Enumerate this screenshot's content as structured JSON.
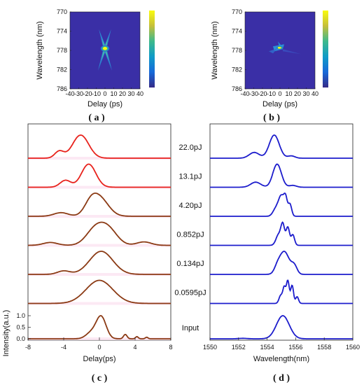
{
  "panel_labels": {
    "a": "( a )",
    "b": "( b )",
    "c": "( c )",
    "d": "( d )"
  },
  "chart_data": [
    {
      "id": "a",
      "type": "heatmap",
      "xlabel": "Delay (ps)",
      "ylabel": "Wavelength (nm)",
      "xlim": [
        -40,
        40
      ],
      "ylim": [
        786,
        770
      ],
      "xticks": [
        -40,
        -30,
        -20,
        -10,
        0,
        10,
        20,
        30,
        40
      ],
      "yticks": [
        770,
        774,
        778,
        782,
        786
      ],
      "colormap": "parula",
      "peak": {
        "x": 0,
        "y": 777.6
      },
      "arms": [
        [
          -7,
          773.6
        ],
        [
          7,
          773.6
        ],
        [
          -8,
          782.2
        ],
        [
          8,
          782.2
        ]
      ],
      "colors": {
        "background": "#3a2fa6"
      }
    },
    {
      "id": "b",
      "type": "heatmap",
      "xlabel": "Delay (ps)",
      "ylabel": "Wavelength (nm)",
      "xlim": [
        -40,
        40
      ],
      "ylim": [
        786,
        770
      ],
      "xticks": [
        -40,
        -30,
        -20,
        -10,
        0,
        10,
        20,
        30,
        40
      ],
      "yticks": [
        770,
        774,
        778,
        782,
        786
      ],
      "colormap": "parula",
      "peak": {
        "x": 0,
        "y": 777.6
      },
      "colors": {
        "background": "#3a2fa6"
      }
    },
    {
      "id": "c",
      "type": "line",
      "xlabel": "Delay(ps)",
      "ylabel": "Intensity(a.u.)",
      "xlim": [
        -8,
        8
      ],
      "xticks": [
        -8,
        -4,
        0,
        4,
        8
      ],
      "ylim": [
        0,
        1.3
      ],
      "yticks": [
        "0.0",
        "0.5",
        "1.0"
      ],
      "series": [
        {
          "name": "22.0pJ",
          "color": "#e8221c",
          "peaks": [
            [
              -2.1,
              1.0,
              0.9
            ],
            [
              -4.5,
              0.3,
              0.5
            ]
          ]
        },
        {
          "name": "13.1pJ",
          "color": "#e8221c",
          "peaks": [
            [
              -1.2,
              1.0,
              0.8
            ],
            [
              -3.8,
              0.3,
              0.6
            ]
          ]
        },
        {
          "name": "4.20pJ",
          "color": "#8b3a14",
          "peaks": [
            [
              0.0,
              1.0,
              1.0
            ],
            [
              -1.0,
              0.5,
              0.7
            ],
            [
              -4.3,
              0.2,
              0.8
            ]
          ]
        },
        {
          "name": "0.852pJ",
          "color": "#8b3a14",
          "peaks": [
            [
              -0.5,
              0.8,
              1.0
            ],
            [
              1.0,
              0.8,
              1.0
            ],
            [
              5.0,
              0.18,
              0.8
            ],
            [
              -5.5,
              0.15,
              0.8
            ]
          ]
        },
        {
          "name": "0.134pJ",
          "color": "#8b3a14",
          "peaks": [
            [
              0.2,
              1.0,
              1.3
            ],
            [
              -4.0,
              0.15,
              0.7
            ]
          ]
        },
        {
          "name": "0.0595pJ",
          "color": "#8b3a14",
          "peaks": [
            [
              0.0,
              1.0,
              1.5
            ]
          ]
        },
        {
          "name": "Input",
          "color": "#8b3a14",
          "peaks": [
            [
              0.2,
              1.0,
              0.55
            ],
            [
              -0.9,
              0.28,
              0.6
            ],
            [
              2.9,
              0.2,
              0.2
            ],
            [
              4.2,
              0.1,
              0.15
            ],
            [
              5.3,
              0.07,
              0.15
            ]
          ]
        }
      ]
    },
    {
      "id": "d",
      "type": "line",
      "xlabel": "Wavelength(nm)",
      "xlim": [
        1550,
        1560
      ],
      "xticks": [
        1550,
        1552,
        1554,
        1556,
        1558,
        1560
      ],
      "series": [
        {
          "name": "22.0pJ",
          "color": "#1c1ccc",
          "peaks": [
            [
              1554.5,
              1.0,
              0.35
            ],
            [
              1553.1,
              0.25,
              0.35
            ],
            [
              1555.7,
              0.1,
              0.25
            ]
          ]
        },
        {
          "name": "13.1pJ",
          "color": "#1c1ccc",
          "peaks": [
            [
              1554.7,
              1.0,
              0.3
            ],
            [
              1553.2,
              0.22,
              0.35
            ],
            [
              1555.8,
              0.08,
              0.25
            ]
          ]
        },
        {
          "name": "4.20pJ",
          "color": "#1c1ccc",
          "peaks": [
            [
              1555.0,
              1.0,
              0.2
            ],
            [
              1555.3,
              0.75,
              0.12
            ],
            [
              1555.6,
              0.6,
              0.12
            ],
            [
              1554.6,
              0.35,
              0.2
            ]
          ]
        },
        {
          "name": "0.852pJ",
          "color": "#1c1ccc",
          "peaks": [
            [
              1555.1,
              0.95,
              0.13
            ],
            [
              1555.45,
              0.85,
              0.12
            ],
            [
              1555.8,
              0.5,
              0.12
            ],
            [
              1554.8,
              0.5,
              0.18
            ]
          ]
        },
        {
          "name": "0.134pJ",
          "color": "#1c1ccc",
          "peaks": [
            [
              1555.2,
              1.0,
              0.35
            ],
            [
              1555.9,
              0.35,
              0.2
            ],
            [
              1554.7,
              0.2,
              0.2
            ]
          ]
        },
        {
          "name": "0.0595pJ",
          "color": "#1c1ccc",
          "peaks": [
            [
              1555.45,
              1.0,
              0.1
            ],
            [
              1555.2,
              0.7,
              0.1
            ],
            [
              1555.75,
              0.8,
              0.1
            ],
            [
              1554.95,
              0.35,
              0.12
            ],
            [
              1556.1,
              0.3,
              0.1
            ]
          ]
        },
        {
          "name": "Input",
          "color": "#1c1ccc",
          "peaks": [
            [
              1555.1,
              1.0,
              0.45
            ],
            [
              1552.3,
              0.02,
              0.3
            ]
          ]
        }
      ]
    }
  ]
}
